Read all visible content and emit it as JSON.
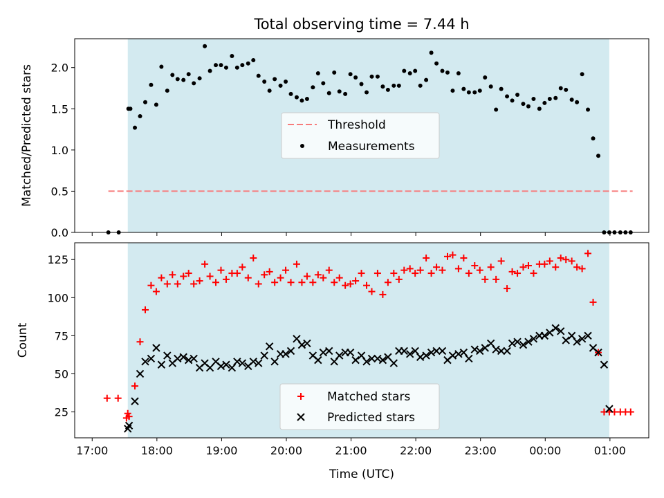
{
  "chart_data": [
    {
      "type": "scatter",
      "title": "Total observing time = 7.44 h",
      "xlabel": "",
      "ylabel": "Matched/Predicted stars",
      "ylim": [
        0,
        2.35
      ],
      "yticks": [
        0.0,
        0.5,
        1.0,
        1.5,
        2.0
      ],
      "ytick_labels": [
        "0.0",
        "0.5",
        "1.0",
        "1.5",
        "2.0"
      ],
      "xlim": [
        -0.27,
        8.6
      ],
      "observing_window": [
        0.55,
        7.99
      ],
      "observing_window_color": "#d3eaf0",
      "legend": {
        "placement": "center",
        "entries": [
          "Threshold",
          "Measurements"
        ]
      },
      "series": [
        {
          "name": "Threshold",
          "kind": "dashed-line",
          "color": "#f77b7b",
          "x": [
            0.25,
            8.35
          ],
          "y": [
            0.5,
            0.5
          ]
        },
        {
          "name": "Measurements",
          "kind": "dot",
          "color": "#000000",
          "x": [
            0.25,
            0.41,
            0.56,
            0.59,
            0.66,
            0.74,
            0.82,
            0.91,
            0.99,
            1.07,
            1.16,
            1.24,
            1.32,
            1.41,
            1.49,
            1.57,
            1.66,
            1.74,
            1.82,
            1.91,
            1.99,
            2.07,
            2.16,
            2.24,
            2.32,
            2.41,
            2.49,
            2.57,
            2.66,
            2.74,
            2.82,
            2.91,
            2.99,
            3.07,
            3.16,
            3.24,
            3.32,
            3.41,
            3.49,
            3.57,
            3.66,
            3.74,
            3.82,
            3.91,
            3.99,
            4.07,
            4.16,
            4.24,
            4.32,
            4.41,
            4.49,
            4.57,
            4.66,
            4.74,
            4.82,
            4.91,
            4.99,
            5.07,
            5.16,
            5.24,
            5.32,
            5.41,
            5.49,
            5.57,
            5.66,
            5.74,
            5.82,
            5.91,
            5.99,
            6.07,
            6.16,
            6.24,
            6.32,
            6.41,
            6.49,
            6.57,
            6.66,
            6.74,
            6.82,
            6.91,
            6.99,
            7.07,
            7.16,
            7.24,
            7.32,
            7.41,
            7.49,
            7.57,
            7.66,
            7.74,
            7.82,
            7.91,
            7.99,
            8.07,
            8.16,
            8.24,
            8.32
          ],
          "y": [
            0.0,
            0.0,
            1.5,
            1.5,
            1.27,
            1.41,
            1.58,
            1.79,
            1.55,
            2.01,
            1.72,
            1.91,
            1.86,
            1.85,
            1.92,
            1.81,
            1.87,
            2.26,
            1.96,
            2.03,
            2.03,
            2.0,
            2.14,
            2.0,
            2.03,
            2.05,
            2.09,
            1.9,
            1.83,
            1.72,
            1.86,
            1.78,
            1.83,
            1.68,
            1.64,
            1.6,
            1.62,
            1.76,
            1.93,
            1.81,
            1.69,
            1.94,
            1.71,
            1.68,
            1.92,
            1.88,
            1.8,
            1.7,
            1.89,
            1.89,
            1.77,
            1.73,
            1.78,
            1.78,
            1.96,
            1.93,
            1.96,
            1.78,
            1.85,
            2.18,
            2.05,
            1.96,
            1.94,
            1.72,
            1.93,
            1.74,
            1.7,
            1.7,
            1.72,
            1.88,
            1.77,
            1.49,
            1.74,
            1.65,
            1.6,
            1.67,
            1.56,
            1.53,
            1.62,
            1.5,
            1.57,
            1.62,
            1.63,
            1.75,
            1.73,
            1.61,
            1.58,
            1.92,
            1.49,
            1.14,
            0.93,
            0.0,
            0.0,
            0.0,
            0.0,
            0.0,
            0.0
          ]
        }
      ]
    },
    {
      "type": "scatter",
      "xlabel": "Time (UTC)",
      "ylabel": "Count",
      "ylim": [
        8,
        136
      ],
      "yticks": [
        25,
        50,
        75,
        100,
        125
      ],
      "ytick_labels": [
        "25",
        "50",
        "75",
        "100",
        "125"
      ],
      "xlim": [
        -0.27,
        8.6
      ],
      "xticks": [
        0,
        1,
        2,
        3,
        4,
        5,
        6,
        7,
        8
      ],
      "xtick_labels": [
        "17:00",
        "18:00",
        "19:00",
        "20:00",
        "21:00",
        "22:00",
        "23:00",
        "00:00",
        "01:00"
      ],
      "observing_window": [
        0.55,
        7.99
      ],
      "observing_window_color": "#d3eaf0",
      "legend": {
        "placement": "lower center",
        "entries": [
          "Matched stars",
          "Predicted stars"
        ]
      },
      "series": [
        {
          "name": "Matched stars",
          "kind": "plus",
          "color": "#ff0000",
          "x": [
            0.23,
            0.4,
            0.53,
            0.55,
            0.57,
            0.66,
            0.74,
            0.82,
            0.91,
            0.99,
            1.07,
            1.16,
            1.24,
            1.32,
            1.41,
            1.49,
            1.57,
            1.66,
            1.74,
            1.82,
            1.91,
            1.99,
            2.07,
            2.16,
            2.24,
            2.32,
            2.41,
            2.49,
            2.57,
            2.66,
            2.74,
            2.82,
            2.91,
            2.99,
            3.07,
            3.16,
            3.24,
            3.32,
            3.41,
            3.49,
            3.57,
            3.66,
            3.74,
            3.82,
            3.91,
            3.99,
            4.07,
            4.16,
            4.24,
            4.32,
            4.41,
            4.49,
            4.57,
            4.66,
            4.74,
            4.82,
            4.91,
            4.99,
            5.07,
            5.16,
            5.24,
            5.32,
            5.41,
            5.49,
            5.57,
            5.66,
            5.74,
            5.82,
            5.91,
            5.99,
            6.07,
            6.16,
            6.24,
            6.32,
            6.41,
            6.49,
            6.57,
            6.66,
            6.74,
            6.82,
            6.91,
            6.99,
            7.07,
            7.16,
            7.24,
            7.32,
            7.41,
            7.49,
            7.57,
            7.66,
            7.74,
            7.82,
            7.91,
            7.99,
            8.07,
            8.16,
            8.24,
            8.32
          ],
          "y": [
            34,
            34,
            21,
            24,
            22,
            42,
            71,
            92,
            108,
            104,
            113,
            109,
            115,
            109,
            114,
            116,
            109,
            111,
            122,
            114,
            110,
            118,
            112,
            116,
            116,
            120,
            113,
            126,
            109,
            115,
            117,
            110,
            113,
            118,
            110,
            122,
            110,
            114,
            110,
            115,
            113,
            118,
            110,
            113,
            108,
            109,
            111,
            116,
            108,
            104,
            116,
            102,
            110,
            116,
            112,
            118,
            119,
            116,
            118,
            126,
            116,
            120,
            118,
            127,
            128,
            119,
            126,
            116,
            121,
            118,
            112,
            120,
            112,
            124,
            106,
            117,
            116,
            120,
            121,
            116,
            122,
            122,
            124,
            120,
            126,
            125,
            124,
            120,
            119,
            129,
            97,
            64,
            25,
            25,
            25,
            25,
            25,
            25
          ]
        },
        {
          "name": "Predicted stars",
          "kind": "cross",
          "color": "#000000",
          "x": [
            0.55,
            0.57,
            0.66,
            0.74,
            0.82,
            0.91,
            0.99,
            1.07,
            1.16,
            1.24,
            1.32,
            1.41,
            1.49,
            1.57,
            1.66,
            1.74,
            1.82,
            1.91,
            1.99,
            2.07,
            2.16,
            2.24,
            2.32,
            2.41,
            2.49,
            2.57,
            2.66,
            2.74,
            2.82,
            2.91,
            2.99,
            3.07,
            3.16,
            3.24,
            3.32,
            3.41,
            3.49,
            3.57,
            3.66,
            3.74,
            3.82,
            3.91,
            3.99,
            4.07,
            4.16,
            4.24,
            4.32,
            4.41,
            4.49,
            4.57,
            4.66,
            4.74,
            4.82,
            4.91,
            4.99,
            5.07,
            5.16,
            5.24,
            5.32,
            5.41,
            5.49,
            5.57,
            5.66,
            5.74,
            5.82,
            5.91,
            5.99,
            6.07,
            6.16,
            6.24,
            6.32,
            6.41,
            6.49,
            6.57,
            6.66,
            6.74,
            6.82,
            6.91,
            6.99,
            7.07,
            7.16,
            7.24,
            7.32,
            7.41,
            7.49,
            7.57,
            7.66,
            7.74,
            7.82,
            7.91,
            7.99
          ],
          "y": [
            14,
            16,
            32,
            50,
            58,
            60,
            67,
            56,
            62,
            57,
            60,
            61,
            59,
            60,
            54,
            57,
            54,
            58,
            55,
            56,
            54,
            58,
            57,
            55,
            58,
            57,
            62,
            68,
            58,
            63,
            63,
            65,
            73,
            69,
            70,
            62,
            59,
            64,
            65,
            58,
            62,
            64,
            64,
            59,
            62,
            58,
            60,
            60,
            59,
            61,
            57,
            65,
            65,
            63,
            65,
            61,
            62,
            64,
            65,
            65,
            59,
            62,
            63,
            64,
            60,
            66,
            65,
            67,
            70,
            66,
            65,
            65,
            70,
            71,
            69,
            71,
            73,
            75,
            75,
            77,
            80,
            78,
            72,
            75,
            71,
            73,
            75,
            67,
            64,
            56,
            27
          ]
        }
      ]
    }
  ]
}
